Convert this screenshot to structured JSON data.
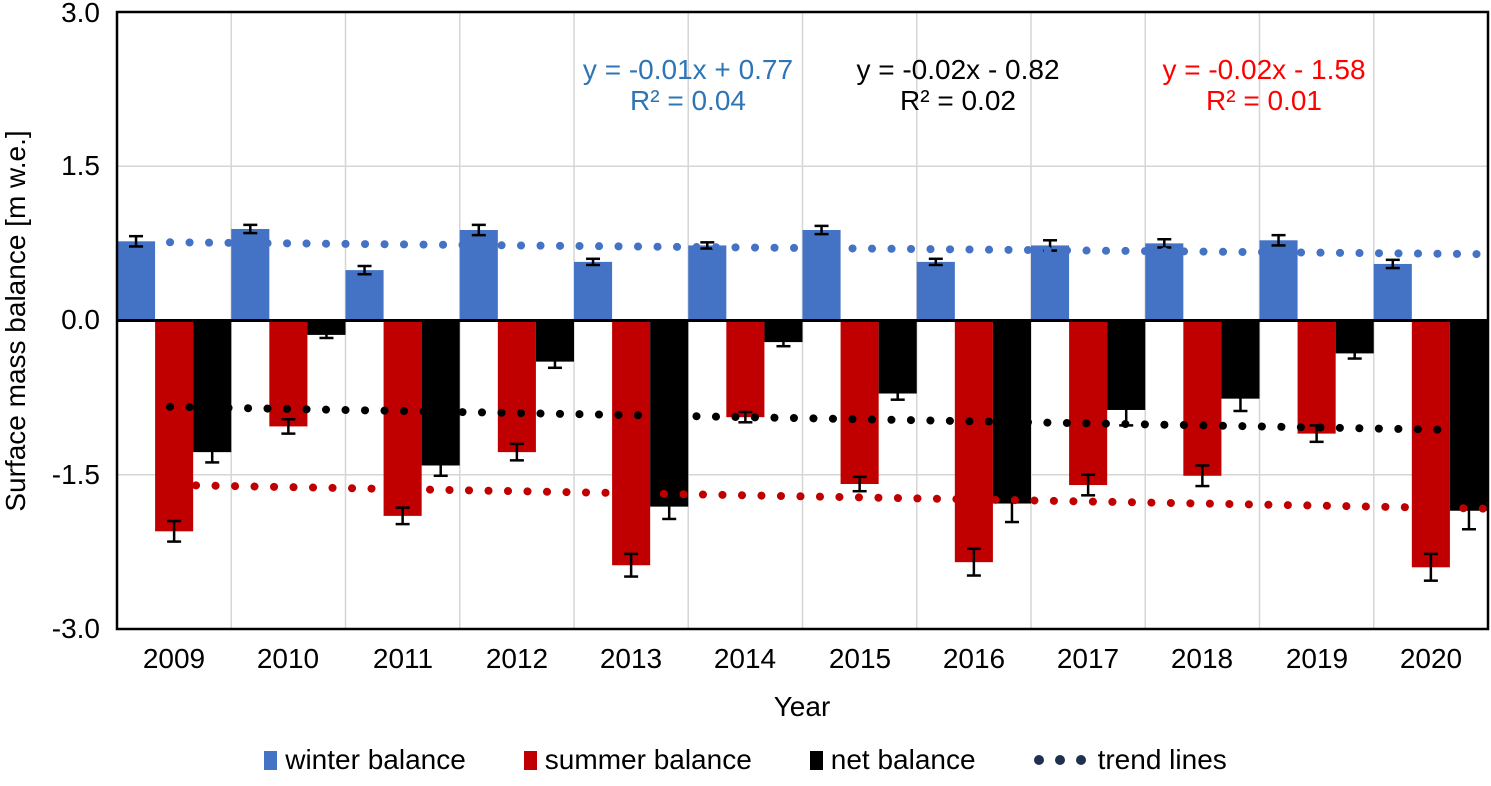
{
  "chart_data": {
    "type": "bar",
    "title": "",
    "xlabel": "Year",
    "ylabel": "Surface mass balance [m w.e.]",
    "ylim": [
      -3.0,
      3.0
    ],
    "y_tick_step": 1.5,
    "y_tick_labels": [
      "3.0",
      "1.5",
      "0.0",
      "-1.5",
      "-3.0"
    ],
    "grid": true,
    "categories": [
      "2009",
      "2010",
      "2011",
      "2012",
      "2013",
      "2014",
      "2015",
      "2016",
      "2017",
      "2018",
      "2019",
      "2020"
    ],
    "series": [
      {
        "name": "winter balance",
        "color": "#4472C4",
        "values": [
          0.77,
          0.89,
          0.49,
          0.88,
          0.57,
          0.73,
          0.88,
          0.57,
          0.73,
          0.75,
          0.78,
          0.55
        ],
        "errors": [
          0.05,
          0.04,
          0.04,
          0.05,
          0.03,
          0.03,
          0.04,
          0.03,
          0.05,
          0.04,
          0.05,
          0.04
        ]
      },
      {
        "name": "summer balance",
        "color": "#C00000",
        "values": [
          -2.05,
          -1.03,
          -1.9,
          -1.28,
          -2.38,
          -0.94,
          -1.59,
          -2.35,
          -1.6,
          -1.51,
          -1.1,
          -2.4
        ],
        "errors": [
          0.1,
          0.07,
          0.08,
          0.08,
          0.11,
          0.05,
          0.07,
          0.13,
          0.1,
          0.1,
          0.08,
          0.13
        ]
      },
      {
        "name": "net balance",
        "color": "#000000",
        "values": [
          -1.28,
          -0.14,
          -1.41,
          -0.4,
          -1.81,
          -0.21,
          -0.71,
          -1.78,
          -0.87,
          -0.76,
          -0.32,
          -1.85
        ],
        "errors": [
          0.1,
          0.03,
          0.1,
          0.06,
          0.12,
          0.04,
          0.06,
          0.18,
          0.15,
          0.12,
          0.05,
          0.18
        ]
      }
    ],
    "trendlines": [
      {
        "series": "winter balance",
        "equation": "y = -0.01x + 0.77",
        "r2_label": "R² = 0.04",
        "slope": -0.01,
        "intercept": 0.77,
        "color": "#4472C4",
        "text_color": "#2E75B6"
      },
      {
        "series": "net balance",
        "equation": "y = -0.02x - 0.82",
        "r2_label": "R² = 0.02",
        "slope": -0.02,
        "intercept": -0.82,
        "color": "#000000",
        "text_color": "#000000"
      },
      {
        "series": "summer balance",
        "equation": "y = -0.02x - 1.58",
        "r2_label": "R² = 0.01",
        "slope": -0.02,
        "intercept": -1.58,
        "color": "#C00000",
        "text_color": "#FF0000"
      }
    ],
    "legend": {
      "position": "bottom",
      "items": [
        "winter balance",
        "summer balance",
        "net balance",
        "trend lines"
      ],
      "trend_dot_color": "#1F3050"
    },
    "gridline_color": "#D6D6D6",
    "axis_color": "#000000"
  }
}
